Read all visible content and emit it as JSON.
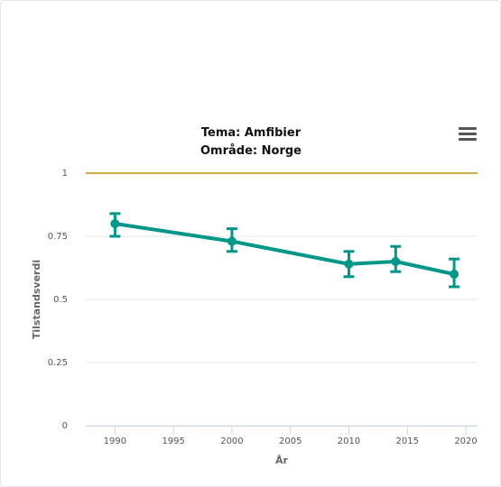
{
  "menu": {
    "icon": "hamburger-menu-icon"
  },
  "colors": {
    "series": "#009688",
    "reference_line": "#d4a843",
    "grid": "#e6e6e6",
    "axis": "#ccd6eb"
  },
  "chart_data": {
    "type": "line",
    "title": "Tema: Amfibier",
    "subtitle": "Område: Norge",
    "xlabel": "År",
    "ylabel": "Tilstandsverdi",
    "xlim": [
      1987.5,
      2021
    ],
    "ylim": [
      0,
      1
    ],
    "xticks": [
      1990,
      1995,
      2000,
      2005,
      2010,
      2015,
      2020
    ],
    "xtick_labels": [
      "1990",
      "1995",
      "2000",
      "2005",
      "2010",
      "2015",
      "2020"
    ],
    "yticks": [
      0,
      0.25,
      0.5,
      0.75,
      1
    ],
    "ytick_labels": [
      "0",
      "0.25",
      "0.5",
      "0.75",
      "1"
    ],
    "grid": true,
    "reference_line": {
      "y": 1
    },
    "series": [
      {
        "x": [
          1990,
          2000,
          2010,
          2014,
          2019
        ],
        "y": [
          0.8,
          0.73,
          0.64,
          0.65,
          0.6
        ],
        "error_low": [
          0.75,
          0.69,
          0.59,
          0.61,
          0.55
        ],
        "error_high": [
          0.84,
          0.78,
          0.69,
          0.71,
          0.66
        ]
      }
    ]
  }
}
